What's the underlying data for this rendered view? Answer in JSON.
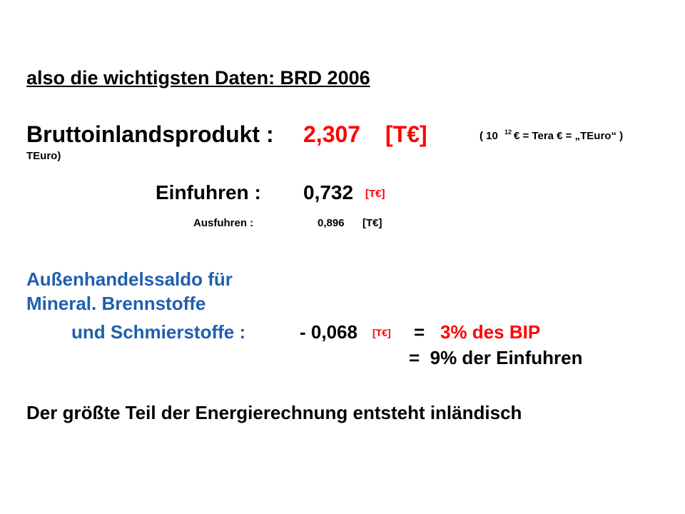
{
  "heading": "also die wichtigsten Daten: BRD 2006",
  "bip": {
    "label": "Bruttoinlandsprodukt :",
    "value": "2,307",
    "unit": "[T€]",
    "note_open": "( 10",
    "note_exp": "12",
    "note_rest": "€ = Tera € = „TEuro“ )",
    "note_tail": "TEuro)"
  },
  "einfuhren": {
    "label": "Einfuhren :",
    "value": "0,732",
    "unit": "[T€]"
  },
  "ausfuhren": {
    "label": "Ausfuhren :",
    "value": "0,896",
    "unit": "[T€]"
  },
  "saldo": {
    "line1": "Außenhandelssaldo für",
    "line2": "Mineral. Brennstoffe",
    "line3": "und Schmierstoffe :",
    "value": "- 0,068",
    "unit": "[T€]",
    "eq1": "=",
    "share_bip": "3% des BIP",
    "share_import": "=  9% der Einfuhren"
  },
  "conclusion": "Der größte Teil der Energierechnung entsteht inländisch"
}
